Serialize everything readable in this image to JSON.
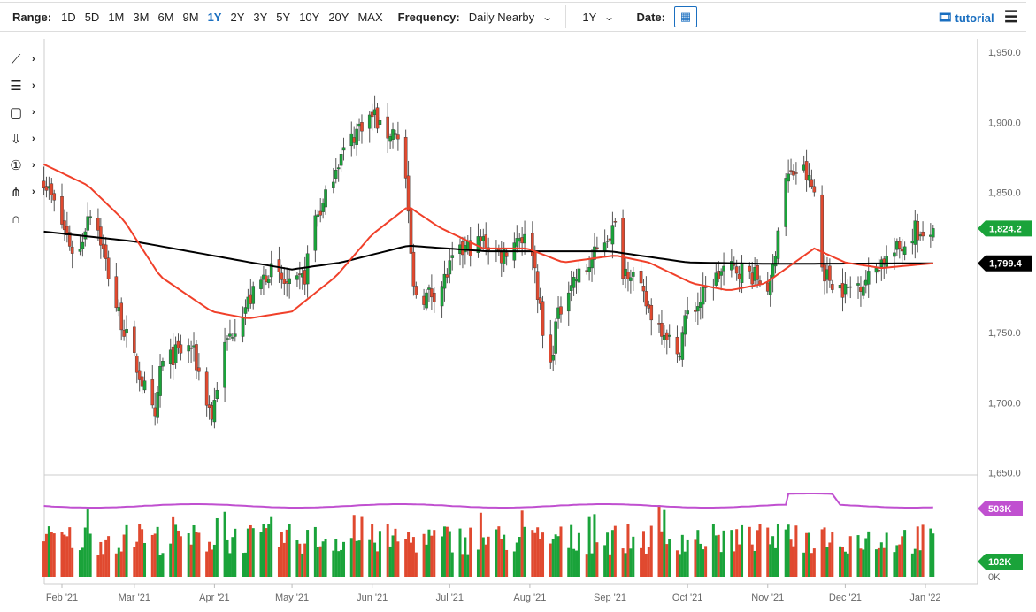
{
  "toolbar": {
    "range_label": "Range:",
    "ranges": [
      "1D",
      "5D",
      "1M",
      "3M",
      "6M",
      "9M",
      "1Y",
      "2Y",
      "3Y",
      "5Y",
      "10Y",
      "20Y",
      "MAX"
    ],
    "active_range": "1Y",
    "frequency_label": "Frequency:",
    "frequency_value": "Daily Nearby",
    "period_value": "1Y",
    "date_label": "Date:",
    "tutorial": "tutorial"
  },
  "tools": [
    "trendline-icon",
    "fib-icon",
    "rectangle-icon",
    "arrow-down-icon",
    "number-marker-icon",
    "pitchfork-icon",
    "magnet-icon"
  ],
  "colors": {
    "up": "#1aa33a",
    "down": "#e0492f",
    "ma50": "#f0402a",
    "ma200": "#000000",
    "open_interest": "#c050d0",
    "last_price_badge": "#1aa33a"
  },
  "chart_data": {
    "type": "candlestick",
    "price_axis": {
      "ticks": [
        "1,950.0",
        "1,900.0",
        "1,850.0",
        "1,750.0",
        "1,700.0",
        "1,650.0"
      ],
      "ylim": [
        1645,
        1960
      ]
    },
    "date_axis": {
      "ticks": [
        "Feb '21",
        "Mar '21",
        "Apr '21",
        "May '21",
        "Jun '21",
        "Jul '21",
        "Aug '21",
        "Sep '21",
        "Oct '21",
        "Nov '21",
        "Dec '21",
        "Jan '22"
      ]
    },
    "last_price": "1,824.2",
    "ma_value": "1,799.4",
    "close_path": [
      [
        "2021-01-25",
        1860
      ],
      [
        "2021-02-07",
        1800
      ],
      [
        "2021-02-11",
        1835
      ],
      [
        "2021-02-13",
        1840
      ],
      [
        "2021-02-18",
        1800
      ],
      [
        "2021-02-21",
        1775
      ],
      [
        "2021-02-28",
        1735
      ],
      [
        "2021-03-04",
        1715
      ],
      [
        "2021-03-07",
        1700
      ],
      [
        "2021-03-09",
        1685
      ],
      [
        "2021-03-11",
        1725
      ],
      [
        "2021-03-17",
        1735
      ],
      [
        "2021-03-23",
        1740
      ],
      [
        "2021-03-31",
        1690
      ],
      [
        "2021-04-04",
        1735
      ],
      [
        "2021-04-10",
        1760
      ],
      [
        "2021-04-17",
        1780
      ],
      [
        "2021-04-22",
        1795
      ],
      [
        "2021-05-01",
        1780
      ],
      [
        "2021-05-06",
        1790
      ],
      [
        "2021-05-09",
        1830
      ],
      [
        "2021-05-13",
        1840
      ],
      [
        "2021-05-18",
        1870
      ],
      [
        "2021-05-23",
        1885
      ],
      [
        "2021-05-28",
        1900
      ],
      [
        "2021-06-02",
        1905
      ],
      [
        "2021-06-05",
        1890
      ],
      [
        "2021-06-10",
        1895
      ],
      [
        "2021-06-14",
        1860
      ],
      [
        "2021-06-15",
        1830
      ],
      [
        "2021-06-17",
        1780
      ],
      [
        "2021-06-20",
        1775
      ],
      [
        "2021-06-27",
        1780
      ],
      [
        "2021-07-02",
        1800
      ],
      [
        "2021-07-07",
        1810
      ],
      [
        "2021-07-14",
        1815
      ],
      [
        "2021-07-21",
        1805
      ],
      [
        "2021-07-28",
        1820
      ],
      [
        "2021-08-02",
        1810
      ],
      [
        "2021-08-05",
        1765
      ],
      [
        "2021-08-08",
        1712
      ],
      [
        "2021-08-11",
        1755
      ],
      [
        "2021-08-16",
        1785
      ],
      [
        "2021-08-23",
        1795
      ],
      [
        "2021-08-29",
        1815
      ],
      [
        "2021-09-03",
        1825
      ],
      [
        "2021-09-04",
        1795
      ],
      [
        "2021-09-09",
        1795
      ],
      [
        "2021-09-15",
        1770
      ],
      [
        "2021-09-18",
        1760
      ],
      [
        "2021-09-23",
        1750
      ],
      [
        "2021-09-27",
        1730
      ],
      [
        "2021-09-30",
        1760
      ],
      [
        "2021-10-05",
        1770
      ],
      [
        "2021-10-10",
        1785
      ],
      [
        "2021-10-15",
        1795
      ],
      [
        "2021-10-22",
        1795
      ],
      [
        "2021-10-27",
        1790
      ],
      [
        "2021-11-02",
        1782
      ],
      [
        "2021-11-05",
        1825
      ],
      [
        "2021-11-08",
        1860
      ],
      [
        "2021-11-12",
        1865
      ],
      [
        "2021-11-15",
        1865
      ],
      [
        "2021-11-19",
        1850
      ],
      [
        "2021-11-21",
        1800
      ],
      [
        "2021-11-24",
        1790
      ],
      [
        "2021-12-01",
        1780
      ],
      [
        "2021-12-06",
        1785
      ],
      [
        "2021-12-11",
        1790
      ],
      [
        "2021-12-14",
        1800
      ],
      [
        "2021-12-19",
        1805
      ],
      [
        "2021-12-25",
        1815
      ],
      [
        "2021-12-28",
        1825
      ],
      [
        "2022-01-01",
        1810
      ],
      [
        "2022-01-04",
        1824.2
      ]
    ],
    "ma50_path": [
      [
        "2021-01-25",
        1870
      ],
      [
        "2021-02-11",
        1855
      ],
      [
        "2021-02-25",
        1830
      ],
      [
        "2021-03-11",
        1790
      ],
      [
        "2021-03-31",
        1765
      ],
      [
        "2021-04-14",
        1760
      ],
      [
        "2021-05-01",
        1765
      ],
      [
        "2021-05-18",
        1790
      ],
      [
        "2021-06-01",
        1820
      ],
      [
        "2021-06-15",
        1840
      ],
      [
        "2021-06-27",
        1825
      ],
      [
        "2021-07-14",
        1810
      ],
      [
        "2021-07-31",
        1810
      ],
      [
        "2021-08-14",
        1800
      ],
      [
        "2021-09-03",
        1805
      ],
      [
        "2021-09-16",
        1800
      ],
      [
        "2021-10-03",
        1785
      ],
      [
        "2021-10-17",
        1780
      ],
      [
        "2021-10-31",
        1785
      ],
      [
        "2021-11-19",
        1810
      ],
      [
        "2021-12-01",
        1800
      ],
      [
        "2021-12-15",
        1796
      ],
      [
        "2022-01-04",
        1799.4
      ]
    ],
    "ma200_path": [
      [
        "2021-01-25",
        1822
      ],
      [
        "2021-03-01",
        1815
      ],
      [
        "2021-04-15",
        1800
      ],
      [
        "2021-05-01",
        1795
      ],
      [
        "2021-05-20",
        1800
      ],
      [
        "2021-06-15",
        1812
      ],
      [
        "2021-07-15",
        1808
      ],
      [
        "2021-09-01",
        1808
      ],
      [
        "2021-10-01",
        1800
      ],
      [
        "2021-11-01",
        1799
      ],
      [
        "2022-01-04",
        1799.4
      ]
    ],
    "volume_panel": {
      "open_interest_label": "503K",
      "volume_label": "102K",
      "zero_label": "0K"
    }
  }
}
